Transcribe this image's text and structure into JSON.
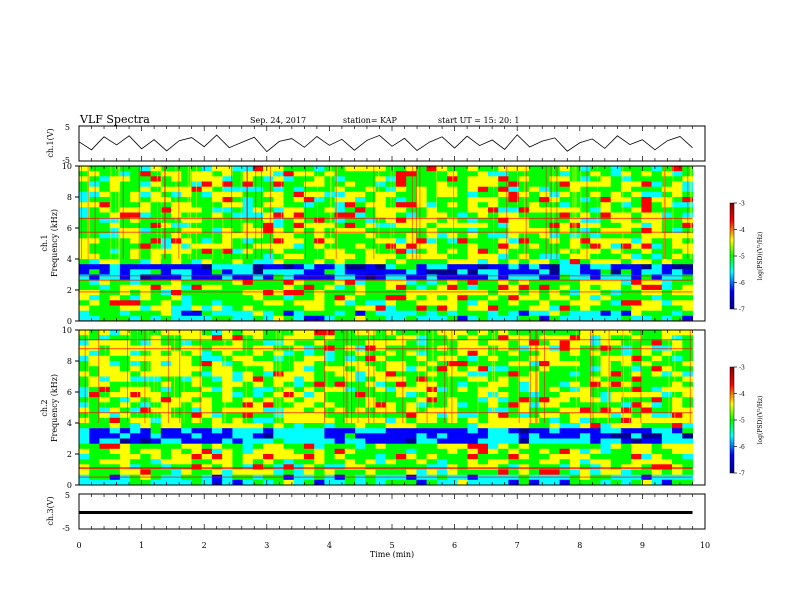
{
  "header": {
    "title": "VLF Spectra",
    "date": "Sep. 24, 2017",
    "station": "station= KAP",
    "start": "start  UT =   15: 20: 1"
  },
  "chart_data": [
    {
      "type": "line",
      "title": "",
      "ylabel": "ch.1(V)",
      "ylim": [
        -5,
        5
      ],
      "yticks": [
        "5",
        "-5"
      ],
      "xlim": [
        0,
        10
      ],
      "series": [
        {
          "values": [
            0.5,
            -1.8,
            1.9,
            -0.4,
            2.2,
            -1.5,
            1.1,
            -2.1,
            0.8,
            1.7,
            -0.9,
            2.4,
            -1.2,
            0.3,
            1.8,
            -2.3,
            0.6,
            1.4,
            -1.1,
            2.0,
            -0.5,
            1.2,
            -1.9,
            0.9,
            2.3,
            -0.8,
            1.5,
            -2.0,
            0.4,
            1.9,
            -1.3,
            2.1,
            -0.6,
            1.0,
            -1.7,
            2.5,
            -1.0,
            0.7,
            1.6,
            -2.2,
            0.2,
            1.3,
            -1.4,
            2.2,
            -0.3,
            1.1,
            -1.8,
            0.8,
            2.0,
            -1.2
          ]
        }
      ]
    },
    {
      "type": "heatmap",
      "title": "",
      "ylabel_lines": [
        "ch.1",
        "Frequency  (kHz)"
      ],
      "yticks": [
        "0",
        "2",
        "4",
        "6",
        "8",
        "10"
      ],
      "ylim": [
        0,
        10
      ],
      "xlim": [
        0,
        10
      ],
      "colorbar": {
        "label": "log(PSD)(V²/Hz)",
        "ticks": [
          "-3",
          "-4",
          "-5",
          "-6",
          "-7"
        ],
        "range": [
          -7,
          -3
        ]
      }
    },
    {
      "type": "heatmap",
      "title": "",
      "ylabel_lines": [
        "ch.2",
        "Frequency  (kHz)"
      ],
      "yticks": [
        "0",
        "2",
        "4",
        "6",
        "8",
        "10"
      ],
      "ylim": [
        0,
        10
      ],
      "xlim": [
        0,
        10
      ],
      "colorbar": {
        "label": "log(PSD)(V²/Hz)",
        "ticks": [
          "-3",
          "-4",
          "-5",
          "-6",
          "-7"
        ],
        "range": [
          -7,
          -3
        ]
      }
    },
    {
      "type": "line",
      "title": "",
      "ylabel": "ch.3(V)",
      "ylim": [
        -5,
        5
      ],
      "yticks": [
        "5",
        "-5"
      ],
      "xlim": [
        0,
        10
      ],
      "series": [
        {
          "values": [
            -0.3,
            -0.3,
            -0.3,
            -0.3,
            -0.3,
            -0.3,
            -0.3,
            -0.3,
            -0.3,
            -0.3,
            -0.3
          ]
        }
      ]
    }
  ],
  "xaxis": {
    "label": "Time  (min)",
    "ticks": [
      "0",
      "1",
      "2",
      "3",
      "4",
      "5",
      "6",
      "7",
      "8",
      "9",
      "10"
    ]
  },
  "colors": {
    "line": "#000000",
    "colormap": [
      "#00008b",
      "#0000ff",
      "#00ffff",
      "#00ff00",
      "#ffff00",
      "#ff0000",
      "#8b0000"
    ]
  }
}
